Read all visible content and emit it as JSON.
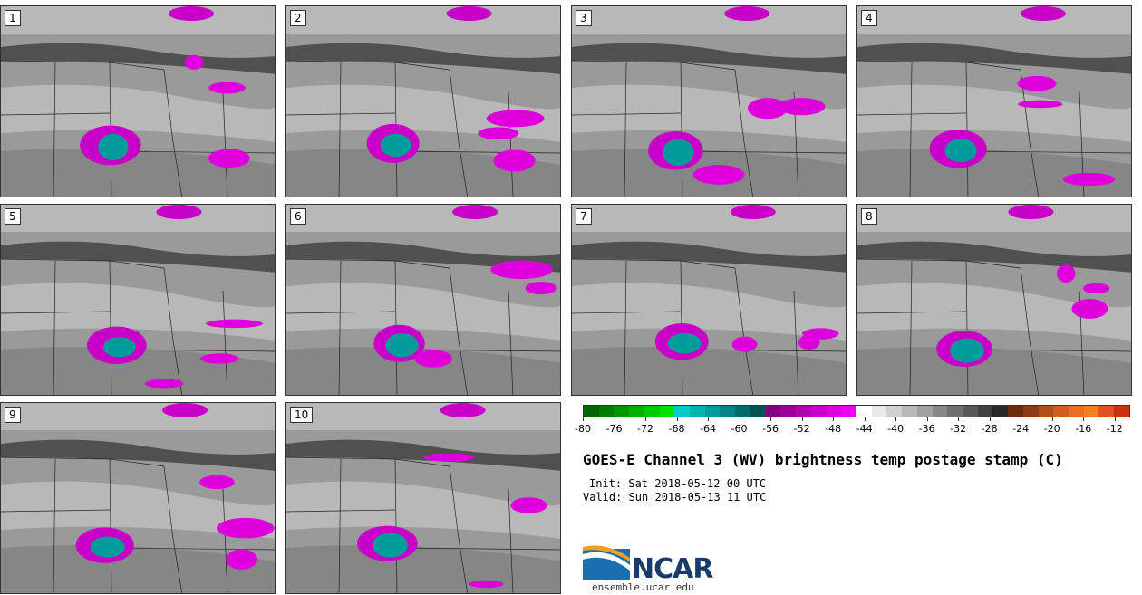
{
  "panels": [
    {
      "label": "1"
    },
    {
      "label": "2"
    },
    {
      "label": "3"
    },
    {
      "label": "4"
    },
    {
      "label": "5"
    },
    {
      "label": "6"
    },
    {
      "label": "7"
    },
    {
      "label": "8"
    },
    {
      "label": "9"
    },
    {
      "label": "10"
    }
  ],
  "colorbar": {
    "ticks": [
      "-80",
      "-76",
      "-72",
      "-68",
      "-64",
      "-60",
      "-56",
      "-52",
      "-48",
      "-44",
      "-40",
      "-36",
      "-32",
      "-28",
      "-24",
      "-20",
      "-16",
      "-12"
    ],
    "colors": [
      "#006400",
      "#007d00",
      "#009600",
      "#00af00",
      "#00c800",
      "#00e100",
      "#00cccc",
      "#00b4b4",
      "#009c9c",
      "#008484",
      "#006c6c",
      "#005454",
      "#800080",
      "#990099",
      "#b000b0",
      "#c800c8",
      "#dd00dd",
      "#f000f0",
      "#ffffff",
      "#e8e8e8",
      "#d0d0d0",
      "#b8b8b8",
      "#a0a0a0",
      "#888888",
      "#707070",
      "#585858",
      "#404040",
      "#282828",
      "#6b2a0a",
      "#8f3a12",
      "#b0501a",
      "#d06020",
      "#e87020",
      "#f08020",
      "#e05020",
      "#c83010"
    ]
  },
  "title": "GOES-E Channel 3 (WV) brightness temp postage stamp (C)",
  "init": "Init: Sat 2018-05-12 00 UTC",
  "valid": "Valid: Sun 2018-05-13 11 UTC",
  "logo": {
    "text": "NCAR",
    "site": "ensemble.ucar.edu"
  }
}
